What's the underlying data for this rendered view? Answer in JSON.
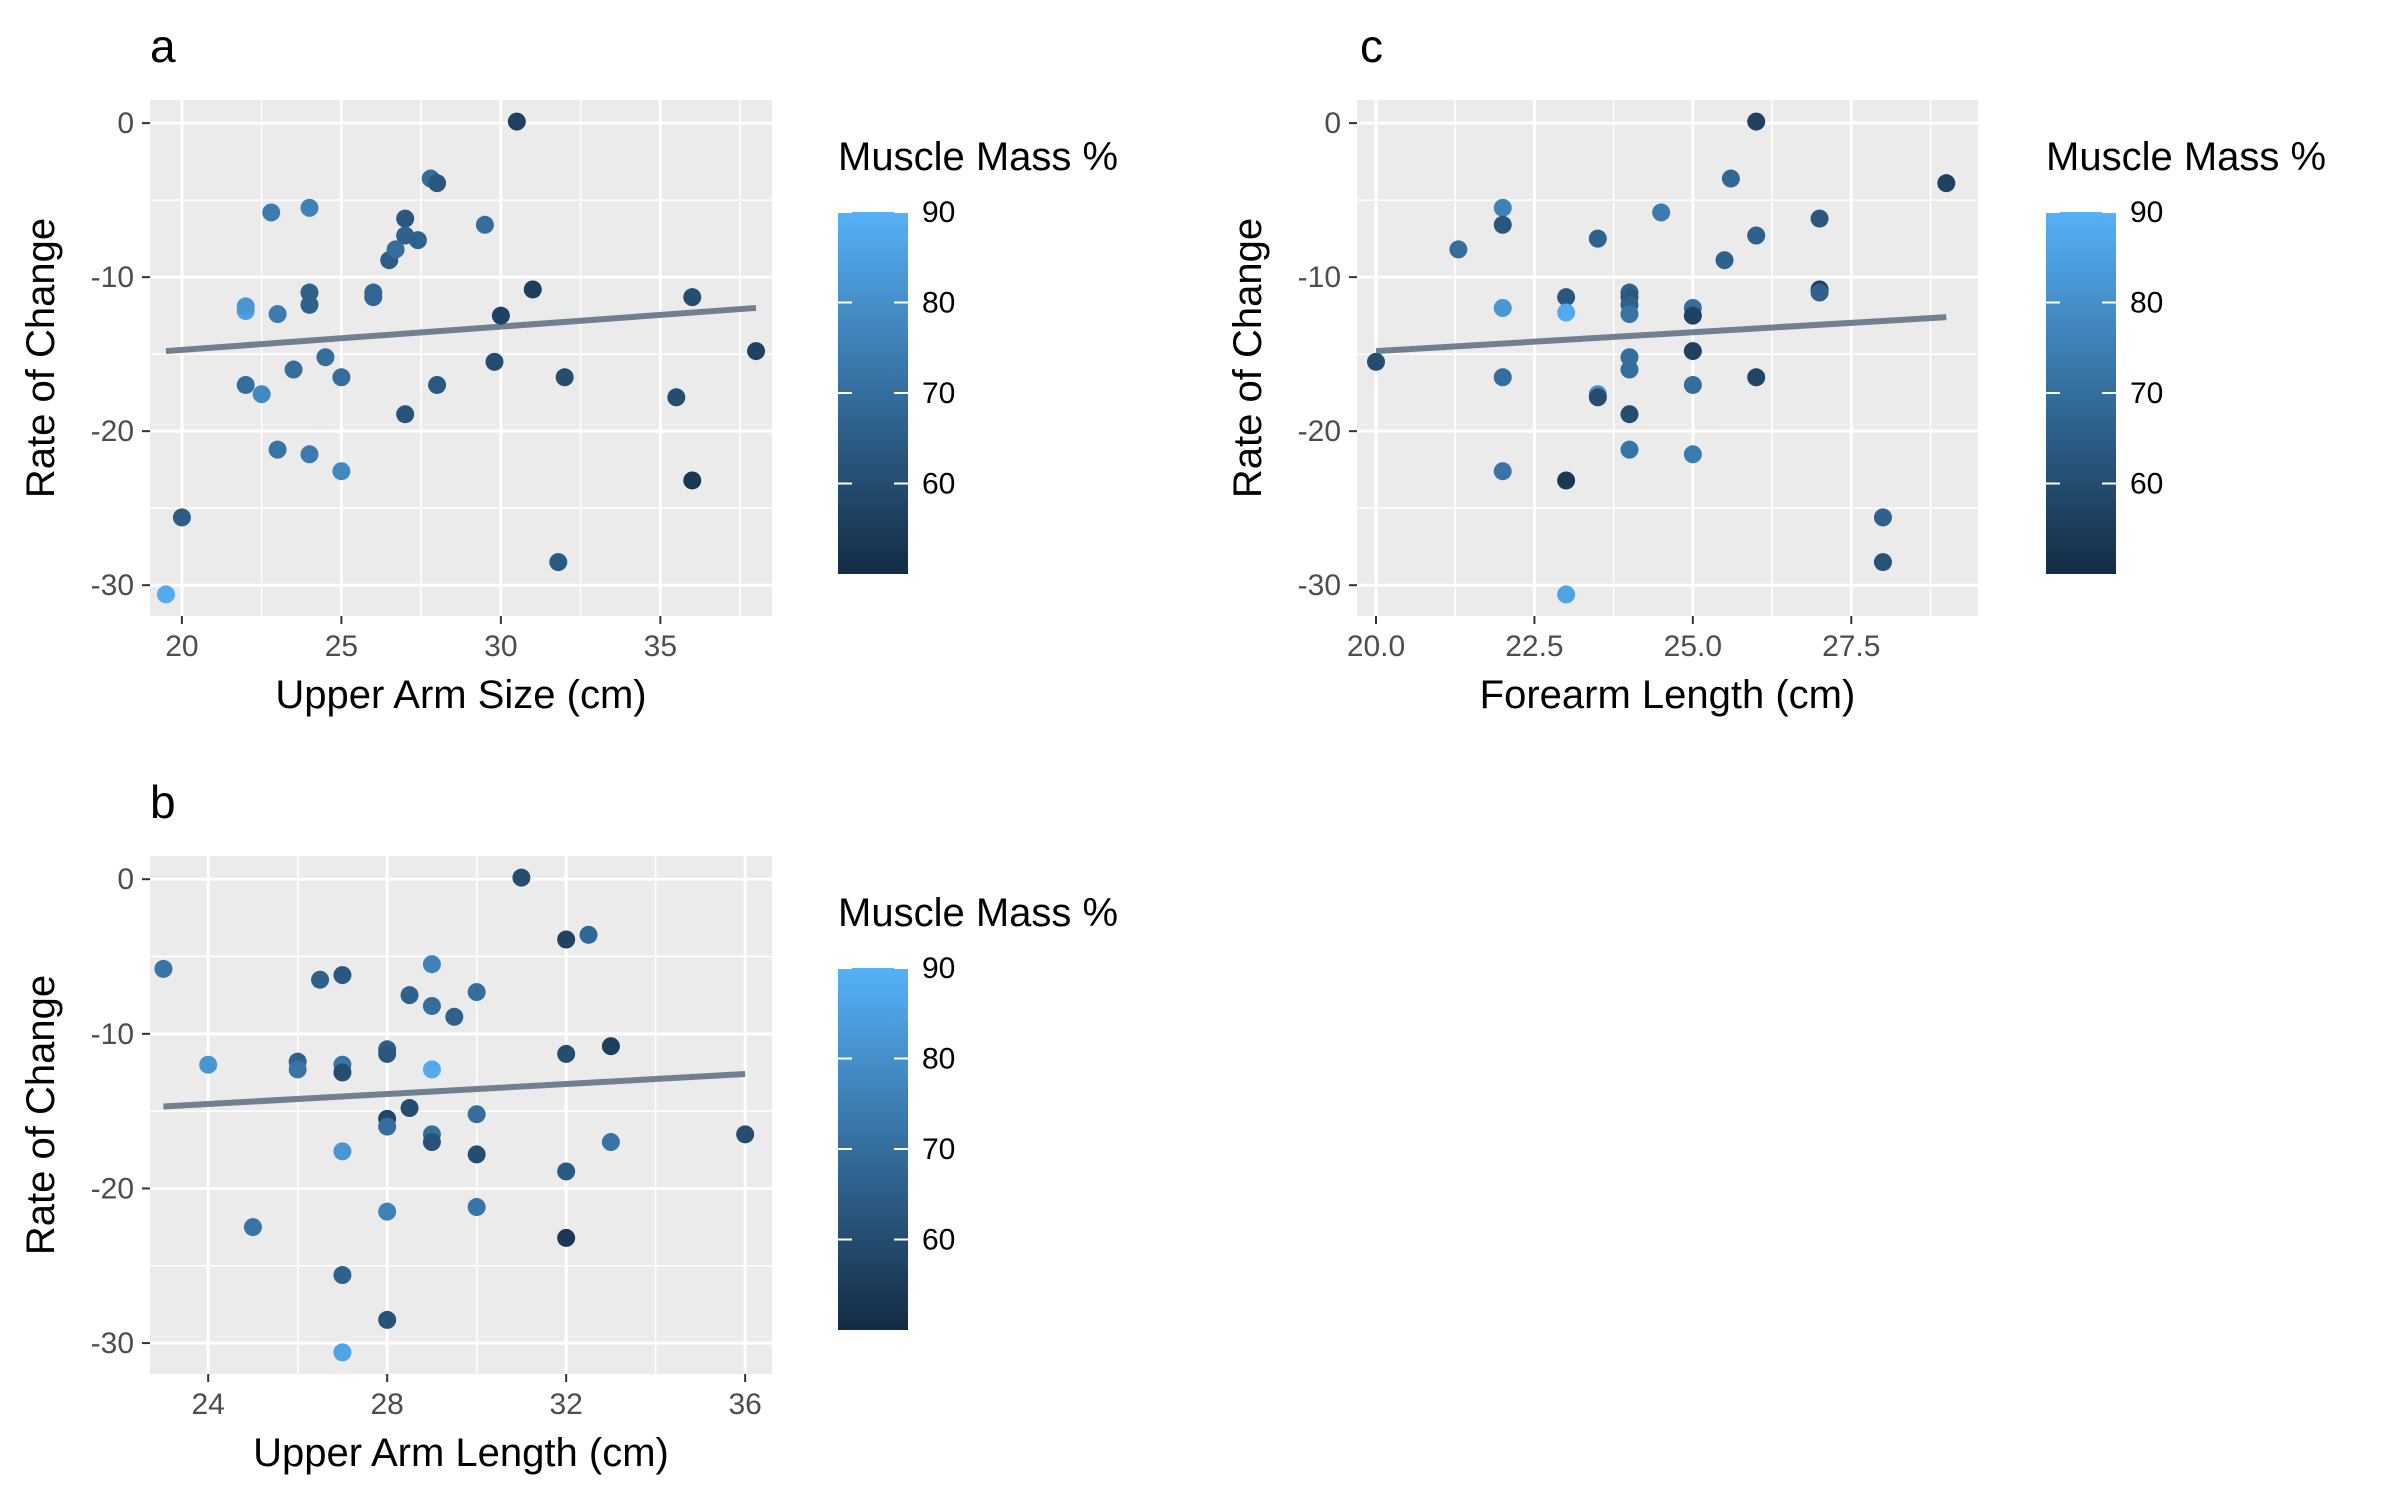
{
  "chart_data": [
    {
      "type": "scatter",
      "panel": "a",
      "xlabel": "Upper Arm Size (cm)",
      "ylabel": "Rate of Change",
      "xlim": [
        19,
        38.5
      ],
      "ylim": [
        -32,
        1.5
      ],
      "xticks": [
        20,
        25,
        30,
        35
      ],
      "yticks": [
        0,
        -10,
        -20,
        -30
      ],
      "grid": true,
      "legend": {
        "title": "Muscle Mass %",
        "range": [
          50,
          90
        ],
        "ticks": [
          60,
          70,
          80,
          90
        ],
        "low_color": "#132b43",
        "high_color": "#56b1f7",
        "placement": "right"
      },
      "trend": {
        "x": [
          19.5,
          38
        ],
        "y": [
          -14.8,
          -12.0
        ],
        "color": "#708090"
      },
      "points": [
        {
          "x": 19.5,
          "y": -30.6,
          "c": 88
        },
        {
          "x": 20,
          "y": -25.6,
          "c": 65
        },
        {
          "x": 22,
          "y": -12.2,
          "c": 85
        },
        {
          "x": 22,
          "y": -11.9,
          "c": 82
        },
        {
          "x": 22,
          "y": -17.0,
          "c": 70
        },
        {
          "x": 22.5,
          "y": -17.6,
          "c": 78
        },
        {
          "x": 22.8,
          "y": -5.8,
          "c": 74
        },
        {
          "x": 23,
          "y": -12.4,
          "c": 74
        },
        {
          "x": 23,
          "y": -21.2,
          "c": 72
        },
        {
          "x": 23.5,
          "y": -16.0,
          "c": 70
        },
        {
          "x": 24,
          "y": -5.5,
          "c": 76
        },
        {
          "x": 24,
          "y": -11.0,
          "c": 66
        },
        {
          "x": 24,
          "y": -11.8,
          "c": 66
        },
        {
          "x": 24,
          "y": -21.5,
          "c": 74
        },
        {
          "x": 24.5,
          "y": -15.2,
          "c": 70
        },
        {
          "x": 25,
          "y": -16.5,
          "c": 70
        },
        {
          "x": 25,
          "y": -22.6,
          "c": 78
        },
        {
          "x": 26,
          "y": -11.0,
          "c": 68
        },
        {
          "x": 26,
          "y": -11.3,
          "c": 68
        },
        {
          "x": 26.5,
          "y": -8.9,
          "c": 65
        },
        {
          "x": 26.7,
          "y": -8.2,
          "c": 70
        },
        {
          "x": 27,
          "y": -6.2,
          "c": 63
        },
        {
          "x": 27,
          "y": -7.3,
          "c": 66
        },
        {
          "x": 27,
          "y": -18.9,
          "c": 62
        },
        {
          "x": 27.4,
          "y": -7.6,
          "c": 66
        },
        {
          "x": 27.8,
          "y": -3.6,
          "c": 70
        },
        {
          "x": 28,
          "y": -3.9,
          "c": 63
        },
        {
          "x": 28,
          "y": -17.0,
          "c": 64
        },
        {
          "x": 29.5,
          "y": -6.6,
          "c": 70
        },
        {
          "x": 29.8,
          "y": -15.5,
          "c": 60
        },
        {
          "x": 30,
          "y": -12.5,
          "c": 57
        },
        {
          "x": 30.5,
          "y": 0.1,
          "c": 57
        },
        {
          "x": 31,
          "y": -10.8,
          "c": 56
        },
        {
          "x": 31.8,
          "y": -28.5,
          "c": 64
        },
        {
          "x": 32,
          "y": -16.5,
          "c": 60
        },
        {
          "x": 35.5,
          "y": -17.8,
          "c": 60
        },
        {
          "x": 36,
          "y": -11.3,
          "c": 60
        },
        {
          "x": 36,
          "y": -23.2,
          "c": 54
        },
        {
          "x": 38,
          "y": -14.8,
          "c": 57
        }
      ]
    },
    {
      "type": "scatter",
      "panel": "b",
      "xlabel": "Upper Arm Length (cm)",
      "ylabel": "Rate of Change",
      "xlim": [
        22.7,
        36.6
      ],
      "ylim": [
        -32,
        1.5
      ],
      "xticks": [
        24,
        28,
        32,
        36
      ],
      "yticks": [
        0,
        -10,
        -20,
        -30
      ],
      "grid": true,
      "legend": {
        "title": "Muscle Mass %",
        "range": [
          50,
          90
        ],
        "ticks": [
          60,
          70,
          80,
          90
        ],
        "low_color": "#132b43",
        "high_color": "#56b1f7",
        "placement": "right"
      },
      "trend": {
        "x": [
          23,
          36
        ],
        "y": [
          -14.7,
          -12.6
        ],
        "color": "#708090"
      },
      "points": [
        {
          "x": 23,
          "y": -5.8,
          "c": 72
        },
        {
          "x": 24,
          "y": -12.0,
          "c": 82
        },
        {
          "x": 25,
          "y": -22.5,
          "c": 72
        },
        {
          "x": 26,
          "y": -11.8,
          "c": 66
        },
        {
          "x": 26,
          "y": -12.3,
          "c": 72
        },
        {
          "x": 26.5,
          "y": -6.5,
          "c": 66
        },
        {
          "x": 27,
          "y": -6.2,
          "c": 63
        },
        {
          "x": 27,
          "y": -12.0,
          "c": 72
        },
        {
          "x": 27,
          "y": -12.5,
          "c": 60
        },
        {
          "x": 27,
          "y": -17.6,
          "c": 82
        },
        {
          "x": 27,
          "y": -25.6,
          "c": 66
        },
        {
          "x": 27,
          "y": -30.6,
          "c": 86
        },
        {
          "x": 28,
          "y": -11.0,
          "c": 66
        },
        {
          "x": 28,
          "y": -11.3,
          "c": 63
        },
        {
          "x": 28,
          "y": -15.5,
          "c": 58
        },
        {
          "x": 28,
          "y": -16.0,
          "c": 70
        },
        {
          "x": 28,
          "y": -21.5,
          "c": 76
        },
        {
          "x": 28,
          "y": -28.5,
          "c": 62
        },
        {
          "x": 28.5,
          "y": -7.5,
          "c": 66
        },
        {
          "x": 28.5,
          "y": -14.8,
          "c": 60
        },
        {
          "x": 29,
          "y": -5.5,
          "c": 76
        },
        {
          "x": 29,
          "y": -8.2,
          "c": 70
        },
        {
          "x": 29,
          "y": -12.3,
          "c": 88
        },
        {
          "x": 29,
          "y": -16.5,
          "c": 70
        },
        {
          "x": 29,
          "y": -17.0,
          "c": 62
        },
        {
          "x": 29.5,
          "y": -8.9,
          "c": 66
        },
        {
          "x": 30,
          "y": -7.3,
          "c": 70
        },
        {
          "x": 30,
          "y": -15.2,
          "c": 70
        },
        {
          "x": 30,
          "y": -17.8,
          "c": 60
        },
        {
          "x": 30,
          "y": -21.2,
          "c": 72
        },
        {
          "x": 31,
          "y": 0.1,
          "c": 60
        },
        {
          "x": 32,
          "y": -3.9,
          "c": 57
        },
        {
          "x": 32,
          "y": -11.3,
          "c": 60
        },
        {
          "x": 32,
          "y": -18.9,
          "c": 64
        },
        {
          "x": 32,
          "y": -23.2,
          "c": 54
        },
        {
          "x": 32.5,
          "y": -3.6,
          "c": 68
        },
        {
          "x": 33,
          "y": -10.8,
          "c": 56
        },
        {
          "x": 33,
          "y": -17.0,
          "c": 72
        },
        {
          "x": 36,
          "y": -16.5,
          "c": 60
        }
      ]
    },
    {
      "type": "scatter",
      "panel": "c",
      "xlabel": "Forearm Length (cm)",
      "ylabel": "Rate of Change",
      "xlim": [
        19.7,
        29.5
      ],
      "ylim": [
        -32,
        1.5
      ],
      "xticks": [
        20.0,
        22.5,
        25.0,
        27.5
      ],
      "xtick_labels": [
        "20.0",
        "22.5",
        "25.0",
        "27.5"
      ],
      "yticks": [
        0,
        -10,
        -20,
        -30
      ],
      "grid": true,
      "legend": {
        "title": "Muscle Mass %",
        "range": [
          50,
          90
        ],
        "ticks": [
          60,
          70,
          80,
          90
        ],
        "low_color": "#132b43",
        "high_color": "#56b1f7",
        "placement": "right"
      },
      "trend": {
        "x": [
          20,
          29
        ],
        "y": [
          -14.8,
          -12.6
        ],
        "color": "#708090"
      },
      "points": [
        {
          "x": 20,
          "y": -15.5,
          "c": 60
        },
        {
          "x": 21.3,
          "y": -8.2,
          "c": 70
        },
        {
          "x": 22,
          "y": -5.5,
          "c": 76
        },
        {
          "x": 22,
          "y": -6.6,
          "c": 63
        },
        {
          "x": 22,
          "y": -12.0,
          "c": 82
        },
        {
          "x": 22,
          "y": -16.5,
          "c": 70
        },
        {
          "x": 22,
          "y": -22.6,
          "c": 72
        },
        {
          "x": 23,
          "y": -11.3,
          "c": 63
        },
        {
          "x": 23,
          "y": -12.3,
          "c": 88
        },
        {
          "x": 23,
          "y": -23.2,
          "c": 54
        },
        {
          "x": 23,
          "y": -30.6,
          "c": 86
        },
        {
          "x": 23.5,
          "y": -7.5,
          "c": 66
        },
        {
          "x": 23.5,
          "y": -17.6,
          "c": 80
        },
        {
          "x": 23.5,
          "y": -17.8,
          "c": 60
        },
        {
          "x": 24,
          "y": -11.0,
          "c": 66
        },
        {
          "x": 24,
          "y": -11.3,
          "c": 63
        },
        {
          "x": 24,
          "y": -11.8,
          "c": 66
        },
        {
          "x": 24,
          "y": -12.4,
          "c": 72
        },
        {
          "x": 24,
          "y": -15.2,
          "c": 70
        },
        {
          "x": 24,
          "y": -16.0,
          "c": 70
        },
        {
          "x": 24,
          "y": -18.9,
          "c": 60
        },
        {
          "x": 24,
          "y": -21.2,
          "c": 72
        },
        {
          "x": 24.5,
          "y": -5.8,
          "c": 74
        },
        {
          "x": 25,
          "y": -12.0,
          "c": 70
        },
        {
          "x": 25,
          "y": -12.5,
          "c": 57
        },
        {
          "x": 25,
          "y": -14.8,
          "c": 57
        },
        {
          "x": 25,
          "y": -17.0,
          "c": 70
        },
        {
          "x": 25,
          "y": -21.5,
          "c": 74
        },
        {
          "x": 25.5,
          "y": -8.9,
          "c": 66
        },
        {
          "x": 25.6,
          "y": -3.6,
          "c": 68
        },
        {
          "x": 26,
          "y": 0.1,
          "c": 57
        },
        {
          "x": 26,
          "y": -7.3,
          "c": 66
        },
        {
          "x": 26,
          "y": -16.5,
          "c": 58
        },
        {
          "x": 27,
          "y": -6.2,
          "c": 63
        },
        {
          "x": 27,
          "y": -10.8,
          "c": 56
        },
        {
          "x": 27,
          "y": -11.0,
          "c": 66
        },
        {
          "x": 28,
          "y": -25.6,
          "c": 66
        },
        {
          "x": 28,
          "y": -28.5,
          "c": 62
        },
        {
          "x": 29,
          "y": -3.9,
          "c": 57
        }
      ]
    }
  ]
}
